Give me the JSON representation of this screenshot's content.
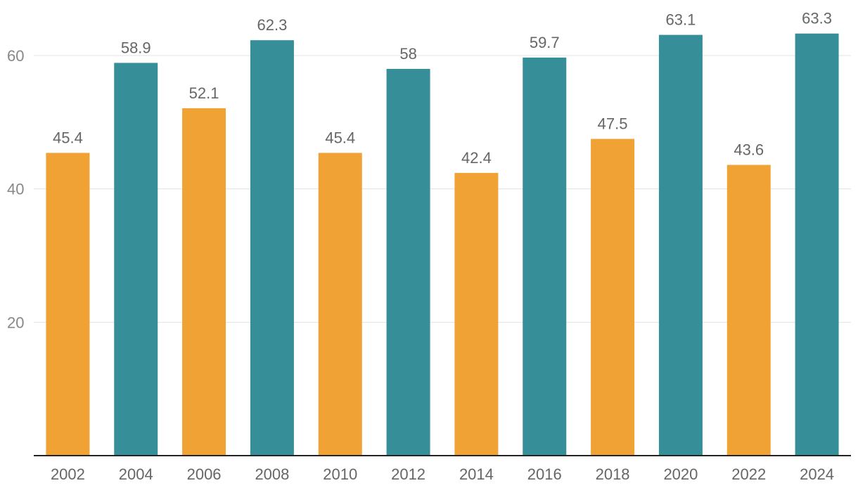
{
  "chart_data": {
    "type": "bar",
    "categories": [
      "2002",
      "2004",
      "2006",
      "2008",
      "2010",
      "2012",
      "2014",
      "2016",
      "2018",
      "2020",
      "2022",
      "2024"
    ],
    "values": [
      45.4,
      58.9,
      52.1,
      62.3,
      45.4,
      58,
      42.4,
      59.7,
      47.5,
      63.1,
      43.6,
      63.3
    ],
    "data_labels": [
      "45.4",
      "58.9",
      "52.1",
      "62.3",
      "45.4",
      "58",
      "42.4",
      "59.7",
      "47.5",
      "63.1",
      "43.6",
      "63.3"
    ],
    "bar_colors": [
      "#f0a235",
      "#368e99",
      "#f0a235",
      "#368e99",
      "#f0a235",
      "#368e99",
      "#f0a235",
      "#368e99",
      "#f0a235",
      "#368e99",
      "#f0a235",
      "#368e99"
    ],
    "yticks": [
      20,
      40,
      60
    ],
    "ylim": [
      0,
      68
    ],
    "grid": true,
    "title": "",
    "xlabel": "",
    "ylabel": ""
  }
}
